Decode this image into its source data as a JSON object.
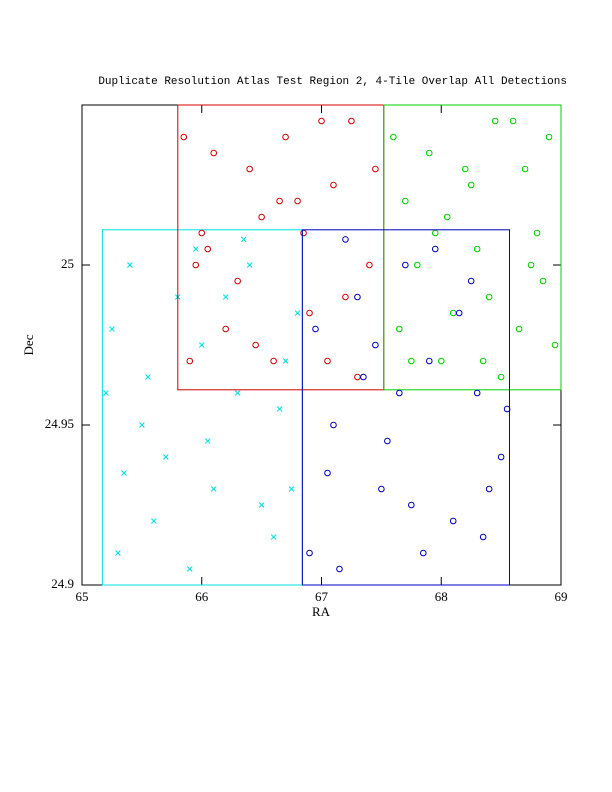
{
  "chart_data": {
    "type": "scatter",
    "title": "Duplicate Resolution Atlas Test Region 2, 4-Tile Overlap All Detections",
    "x_label": "RA",
    "y_label": "Dec",
    "xlim": [
      65,
      69
    ],
    "ylim": [
      24.9,
      25.05
    ],
    "xticks": [
      65,
      66,
      67,
      68,
      69
    ],
    "yticks": [
      24.9,
      24.95,
      25
    ],
    "series": [
      {
        "color": "#00e0e0",
        "marker": "x",
        "box": [
          65.17,
          66.84,
          24.9,
          25.011
        ],
        "x": [
          65.3,
          65.5,
          65.8,
          66.1,
          66.4,
          66.7,
          65.25,
          65.6,
          65.95,
          66.3,
          66.6,
          65.4,
          65.7,
          66.0,
          66.5,
          66.8,
          65.35,
          65.9,
          66.2,
          66.65,
          65.55,
          66.05,
          66.35,
          65.2,
          66.75
        ],
        "y": [
          24.91,
          24.95,
          24.99,
          24.93,
          25.0,
          24.97,
          24.98,
          24.92,
          25.005,
          24.96,
          24.915,
          25.0,
          24.94,
          24.975,
          24.925,
          24.985,
          24.935,
          24.905,
          24.99,
          24.955,
          24.965,
          24.945,
          25.008,
          24.96,
          24.93
        ]
      },
      {
        "color": "#d00000",
        "marker": "o",
        "box": [
          65.8,
          67.52,
          24.961,
          25.05
        ],
        "x": [
          65.85,
          66.0,
          66.2,
          66.4,
          66.6,
          66.8,
          67.0,
          67.2,
          67.4,
          65.9,
          66.1,
          66.3,
          66.5,
          66.7,
          66.9,
          67.1,
          67.3,
          67.45,
          66.05,
          66.45,
          66.85,
          67.25,
          65.95,
          66.65,
          67.05
        ],
        "y": [
          25.04,
          25.01,
          24.98,
          25.03,
          24.97,
          25.02,
          25.045,
          24.99,
          25.0,
          24.97,
          25.035,
          24.995,
          25.015,
          25.04,
          24.985,
          25.025,
          24.965,
          25.03,
          25.005,
          24.975,
          25.01,
          25.045,
          25.0,
          25.02,
          24.97
        ]
      },
      {
        "color": "#00d000",
        "marker": "o",
        "box": [
          67.52,
          69,
          24.961,
          25.05
        ],
        "x": [
          67.6,
          67.8,
          68.0,
          68.2,
          68.4,
          68.6,
          68.8,
          68.95,
          67.7,
          67.9,
          68.1,
          68.3,
          68.5,
          68.7,
          68.9,
          67.65,
          68.05,
          68.45,
          68.85,
          67.75,
          68.25,
          68.65,
          67.95,
          68.35,
          68.75
        ],
        "y": [
          25.04,
          25.0,
          24.97,
          25.03,
          24.99,
          25.045,
          25.01,
          24.975,
          25.02,
          25.035,
          24.985,
          25.005,
          24.965,
          25.03,
          25.04,
          24.98,
          25.015,
          25.045,
          24.995,
          24.97,
          25.025,
          24.98,
          25.01,
          24.97,
          25.0
        ]
      },
      {
        "color": "#0000c0",
        "marker": "o",
        "box": [
          66.84,
          68.57,
          24.9,
          25.011
        ],
        "x": [
          66.9,
          67.1,
          67.3,
          67.5,
          67.7,
          67.9,
          68.1,
          68.3,
          68.5,
          66.95,
          67.15,
          67.35,
          67.55,
          67.75,
          67.95,
          68.15,
          68.35,
          68.55,
          67.05,
          67.45,
          67.85,
          68.25,
          67.2,
          67.65,
          68.4
        ],
        "y": [
          24.91,
          24.95,
          24.99,
          24.93,
          25.0,
          24.97,
          24.92,
          24.96,
          24.94,
          24.98,
          24.905,
          24.965,
          24.945,
          24.925,
          25.005,
          24.985,
          24.915,
          24.955,
          24.935,
          24.975,
          24.91,
          24.995,
          25.008,
          24.96,
          24.93
        ]
      }
    ]
  }
}
